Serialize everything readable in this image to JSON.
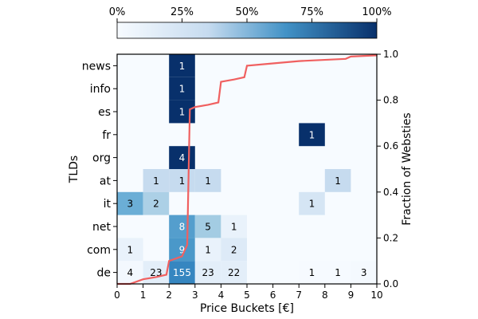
{
  "chart_data": {
    "type": "heatmap",
    "xlabel": "Price Buckets [€]",
    "ylabel": "TLDs",
    "y2label": "Fraction of Websties",
    "x_ticks": [
      "0",
      "1",
      "2",
      "3",
      "4",
      "5",
      "6",
      "7",
      "8",
      "9",
      "10"
    ],
    "x_range": [
      0,
      10
    ],
    "y_categories": [
      "news",
      "info",
      "es",
      "fr",
      "org",
      "at",
      "it",
      "net",
      "com",
      "de"
    ],
    "y2_ticks": [
      "0.0",
      "0.2",
      "0.4",
      "0.6",
      "0.8",
      "1.0"
    ],
    "y2_range": [
      0,
      1
    ],
    "colorbar": {
      "ticks": [
        "0%",
        "25%",
        "50%",
        "75%",
        "100%"
      ],
      "low_color": "#f7fbff",
      "high_color": "#08306b"
    },
    "cells": [
      {
        "tld": "news",
        "bucket": 2,
        "count": "1",
        "intensity": 1.0
      },
      {
        "tld": "info",
        "bucket": 2,
        "count": "1",
        "intensity": 1.0
      },
      {
        "tld": "es",
        "bucket": 2,
        "count": "1",
        "intensity": 1.0
      },
      {
        "tld": "fr",
        "bucket": 7,
        "count": "1",
        "intensity": 1.0
      },
      {
        "tld": "org",
        "bucket": 2,
        "count": "4",
        "intensity": 1.0
      },
      {
        "tld": "at",
        "bucket": 1,
        "count": "1",
        "intensity": 0.25
      },
      {
        "tld": "at",
        "bucket": 2,
        "count": "1",
        "intensity": 0.25
      },
      {
        "tld": "at",
        "bucket": 3,
        "count": "1",
        "intensity": 0.25
      },
      {
        "tld": "at",
        "bucket": 8,
        "count": "1",
        "intensity": 0.25
      },
      {
        "tld": "it",
        "bucket": 0,
        "count": "3",
        "intensity": 0.5
      },
      {
        "tld": "it",
        "bucket": 1,
        "count": "2",
        "intensity": 0.33
      },
      {
        "tld": "it",
        "bucket": 7,
        "count": "1",
        "intensity": 0.17
      },
      {
        "tld": "net",
        "bucket": 2,
        "count": "8",
        "intensity": 0.57
      },
      {
        "tld": "net",
        "bucket": 3,
        "count": "5",
        "intensity": 0.36
      },
      {
        "tld": "net",
        "bucket": 4,
        "count": "1",
        "intensity": 0.07
      },
      {
        "tld": "com",
        "bucket": 0,
        "count": "1",
        "intensity": 0.07
      },
      {
        "tld": "com",
        "bucket": 2,
        "count": "9",
        "intensity": 0.6
      },
      {
        "tld": "com",
        "bucket": 3,
        "count": "1",
        "intensity": 0.07
      },
      {
        "tld": "com",
        "bucket": 4,
        "count": "2",
        "intensity": 0.13
      },
      {
        "tld": "de",
        "bucket": 0,
        "count": "4",
        "intensity": 0.02
      },
      {
        "tld": "de",
        "bucket": 1,
        "count": "23",
        "intensity": 0.1
      },
      {
        "tld": "de",
        "bucket": 2,
        "count": "155",
        "intensity": 0.67
      },
      {
        "tld": "de",
        "bucket": 3,
        "count": "23",
        "intensity": 0.1
      },
      {
        "tld": "de",
        "bucket": 4,
        "count": "22",
        "intensity": 0.1
      },
      {
        "tld": "de",
        "bucket": 7,
        "count": "1",
        "intensity": 0.005
      },
      {
        "tld": "de",
        "bucket": 8,
        "count": "1",
        "intensity": 0.005
      },
      {
        "tld": "de",
        "bucket": 9,
        "count": "3",
        "intensity": 0.013
      }
    ],
    "cdf_line": {
      "color": "#f06060",
      "points": [
        [
          0,
          0
        ],
        [
          0.5,
          0.0
        ],
        [
          1.0,
          0.02
        ],
        [
          1.5,
          0.03
        ],
        [
          1.9,
          0.04
        ],
        [
          2.0,
          0.1
        ],
        [
          2.5,
          0.12
        ],
        [
          2.7,
          0.17
        ],
        [
          2.8,
          0.76
        ],
        [
          3.0,
          0.77
        ],
        [
          3.5,
          0.78
        ],
        [
          3.9,
          0.79
        ],
        [
          4.0,
          0.88
        ],
        [
          4.5,
          0.89
        ],
        [
          4.9,
          0.9
        ],
        [
          5.0,
          0.95
        ],
        [
          6.0,
          0.96
        ],
        [
          7.0,
          0.97
        ],
        [
          8.8,
          0.98
        ],
        [
          9.0,
          0.99
        ],
        [
          10.0,
          0.995
        ]
      ]
    }
  }
}
